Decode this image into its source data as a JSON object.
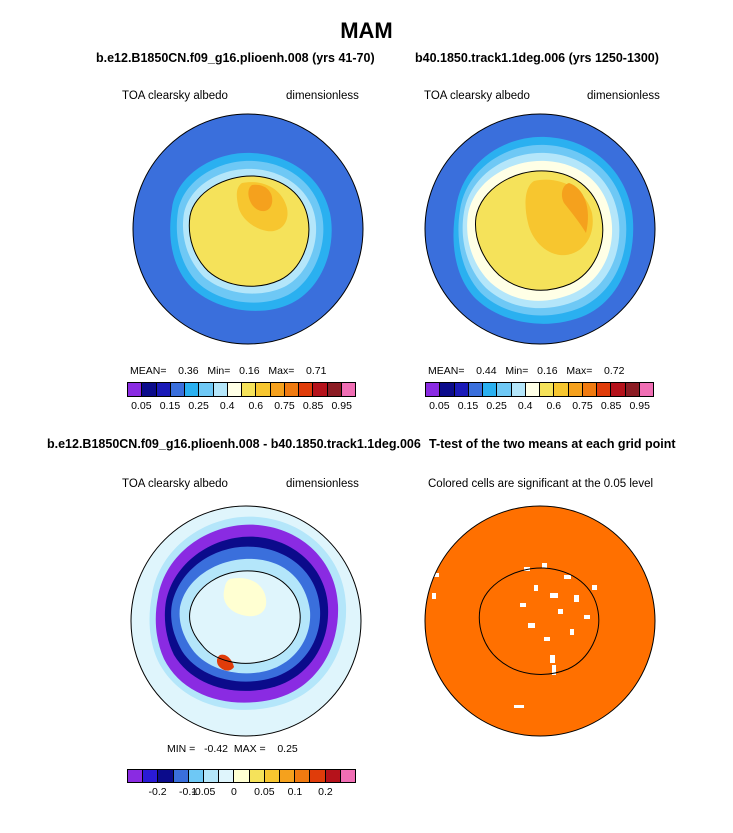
{
  "figure": {
    "title": "MAM"
  },
  "palette": {
    "albedo": [
      "#8a2be2",
      "#0b0b8b",
      "#1a1ab8",
      "#3a6fdc",
      "#2ab0f0",
      "#6ec8f5",
      "#b4e6fa",
      "#ffffe6",
      "#f5e25a",
      "#f7c62f",
      "#f5a11d",
      "#f07a10",
      "#e03c0a",
      "#b5121b",
      "#8c1c24",
      "#f06eb4"
    ],
    "diff": [
      "#8a2be2",
      "#2a1ad6",
      "#0b0b8b",
      "#3a6fdc",
      "#6ec8f5",
      "#b4e6fa",
      "#dff5fc",
      "#ffffd2",
      "#f5e25a",
      "#f7c62f",
      "#f5a11d",
      "#f07a10",
      "#e03c0a",
      "#b5121b",
      "#f06eb4"
    ],
    "significance": "#ff7000"
  },
  "chart_data": [
    {
      "type": "heatmap",
      "title": "b.e12.B1850CN.f09_g16.plioenh.008 (yrs 41-70)",
      "variable": "TOA clearsky albedo",
      "units": "dimensionless",
      "stats": {
        "mean_label": "MEAN=",
        "mean": "0.36",
        "min_label": "Min=",
        "min": "0.16",
        "max_label": "Max=",
        "max": "0.71"
      },
      "colorbar_ticks": [
        "0.05",
        "0.15",
        "0.25",
        "0.4",
        "0.6",
        "0.75",
        "0.85",
        "0.95"
      ]
    },
    {
      "type": "heatmap",
      "title": "b40.1850.track1.1deg.006 (yrs 1250-1300)",
      "variable": "TOA clearsky albedo",
      "units": "dimensionless",
      "stats": {
        "mean_label": "MEAN=",
        "mean": "0.44",
        "min_label": "Min=",
        "min": "0.16",
        "max_label": "Max=",
        "max": "0.72"
      },
      "colorbar_ticks": [
        "0.05",
        "0.15",
        "0.25",
        "0.4",
        "0.6",
        "0.75",
        "0.85",
        "0.95"
      ]
    },
    {
      "type": "heatmap",
      "title": "b.e12.B1850CN.f09_g16.plioenh.008 - b40.1850.track1.1deg.006",
      "variable": "TOA clearsky albedo",
      "units": "dimensionless",
      "stats": {
        "min_label": "MIN =",
        "min": "-0.42",
        "max_label": "MAX =",
        "max": "0.25"
      },
      "colorbar_ticks": [
        "-0.2",
        "-0.1",
        "-0.05",
        "0",
        "0.05",
        "0.1",
        "0.2"
      ]
    },
    {
      "type": "heatmap",
      "title": "T-test of the two means at each grid point",
      "subtitle": "Colored cells are significant at the 0.05 level"
    }
  ]
}
